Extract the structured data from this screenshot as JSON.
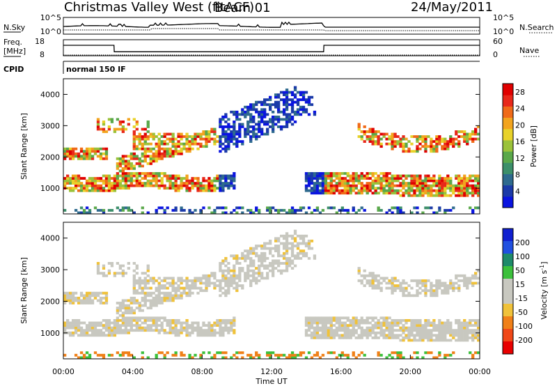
{
  "header": {
    "station": "Christmas Valley West (fitACF)",
    "beam": "Beam 01",
    "date": "24/May/2011"
  },
  "left_labels": {
    "nsky": "N.Sky",
    "freq": "Freq.",
    "freq_unit": "[MHz]",
    "cpid": "CPID"
  },
  "right_labels": {
    "nsearch": "N.Search",
    "nave": "Nave"
  },
  "cpid_text": "normal 150 IF",
  "colors": {
    "power": [
      "#0a14e0",
      "#1b3aa8",
      "#2e6a8e",
      "#3c8f6a",
      "#5aa84a",
      "#9bc23a",
      "#e8d22a",
      "#f2a41e",
      "#f06a18",
      "#e8281a",
      "#e00000"
    ],
    "velocity": [
      "#1020d0",
      "#2050e0",
      "#1e8a6a",
      "#3cc03c",
      "#c8c8c0",
      "#c8c8c0",
      "#f0c23a",
      "#f08018",
      "#f04818",
      "#e80000"
    ]
  },
  "chart_data": [
    {
      "type": "line",
      "panel": "noise",
      "series": [
        {
          "name": "N.Sky",
          "style": "solid"
        },
        {
          "name": "N.Search",
          "style": "dotted"
        }
      ],
      "yticks": [
        "10^5",
        "10^0"
      ],
      "yticks_right": [
        "10^5",
        "10^0"
      ]
    },
    {
      "type": "line",
      "panel": "frequency",
      "yticks": [
        "18",
        "8"
      ],
      "yticks_right": [
        "60",
        "0"
      ],
      "series": [
        {
          "name": "Freq.",
          "x": [
            "00:00",
            "02:55",
            "02:56",
            "15:00",
            "15:01",
            "24:00"
          ],
          "y": [
            14.5,
            14.5,
            10.5,
            10.5,
            14.5,
            14.5
          ]
        },
        {
          "name": "Nave",
          "style": "dotted"
        }
      ]
    },
    {
      "type": "heatmap",
      "panel": "power",
      "ylabel": "Slant Range [km]",
      "yticks": [
        1000,
        2000,
        3000,
        4000
      ],
      "ylim": [
        180,
        4500
      ],
      "xlim": [
        "00:00",
        "24:00"
      ],
      "colorbar": {
        "label": "Power [dB]",
        "ticks": [
          4,
          8,
          12,
          16,
          20,
          24,
          28
        ],
        "range": [
          0,
          30
        ]
      }
    },
    {
      "type": "heatmap",
      "panel": "velocity",
      "ylabel": "Slant Range [km]",
      "yticks": [
        1000,
        2000,
        3000,
        4000
      ],
      "ylim": [
        180,
        4500
      ],
      "xlabel": "Time UT",
      "xticks": [
        "00:00",
        "04:00",
        "08:00",
        "12:00",
        "16:00",
        "20:00",
        "00:00"
      ],
      "colorbar": {
        "label": "Velocity [m s",
        "label_sup": "-1",
        "label_end": "]",
        "ticks": [
          200,
          100,
          50,
          15,
          -15,
          -50,
          -100,
          -200
        ]
      }
    }
  ]
}
